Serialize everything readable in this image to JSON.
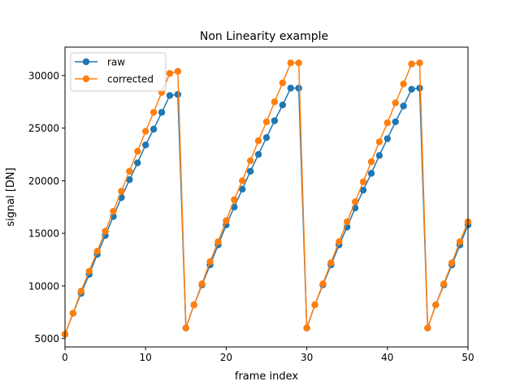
{
  "chart_data": {
    "type": "line",
    "title": "Non Linearity example",
    "xlabel": "frame index",
    "ylabel": "signal [DN]",
    "xlim": [
      0,
      50
    ],
    "ylim": [
      4200,
      32700
    ],
    "xticks": [
      0,
      10,
      20,
      30,
      40,
      50
    ],
    "yticks": [
      5000,
      10000,
      15000,
      20000,
      25000,
      30000
    ],
    "legend": "top-left",
    "grid": false,
    "series": [
      {
        "name": "raw",
        "color": "#1f77b4",
        "x": [
          0,
          1,
          2,
          3,
          4,
          5,
          6,
          7,
          8,
          9,
          10,
          11,
          12,
          13,
          14,
          15,
          16,
          17,
          18,
          19,
          20,
          21,
          22,
          23,
          24,
          25,
          26,
          27,
          28,
          29,
          30,
          31,
          32,
          33,
          34,
          35,
          36,
          37,
          38,
          39,
          40,
          41,
          42,
          43,
          44,
          45,
          46,
          47,
          48,
          49,
          50
        ],
        "y": [
          5400,
          7400,
          9300,
          11100,
          13000,
          14800,
          16600,
          18400,
          20100,
          21700,
          23400,
          24900,
          26500,
          28100,
          28200,
          6000,
          8200,
          10100,
          12000,
          13900,
          15800,
          17500,
          19200,
          20900,
          22500,
          24100,
          25700,
          27200,
          28800,
          28800,
          6000,
          8200,
          10100,
          12000,
          13900,
          15600,
          17400,
          19100,
          20700,
          22400,
          24000,
          25600,
          27100,
          28700,
          28800,
          6000,
          8200,
          10100,
          12000,
          13900,
          15800
        ]
      },
      {
        "name": "corrected",
        "color": "#ff7f0e",
        "x": [
          0,
          1,
          2,
          3,
          4,
          5,
          6,
          7,
          8,
          9,
          10,
          11,
          12,
          13,
          14,
          15,
          16,
          17,
          18,
          19,
          20,
          21,
          22,
          23,
          24,
          25,
          26,
          27,
          28,
          29,
          30,
          31,
          32,
          33,
          34,
          35,
          36,
          37,
          38,
          39,
          40,
          41,
          42,
          43,
          44,
          45,
          46,
          47,
          48,
          49,
          50
        ],
        "y": [
          5400,
          7400,
          9500,
          11400,
          13300,
          15200,
          17100,
          19000,
          20900,
          22800,
          24700,
          26500,
          28400,
          30200,
          30400,
          6000,
          8200,
          10200,
          12300,
          14200,
          16200,
          18200,
          20000,
          21900,
          23800,
          25600,
          27500,
          29300,
          31200,
          31200,
          6000,
          8200,
          10200,
          12200,
          14200,
          16100,
          18000,
          19900,
          21800,
          23700,
          25500,
          27400,
          29200,
          31100,
          31200,
          6000,
          8200,
          10200,
          12200,
          14200,
          16100
        ]
      }
    ]
  }
}
